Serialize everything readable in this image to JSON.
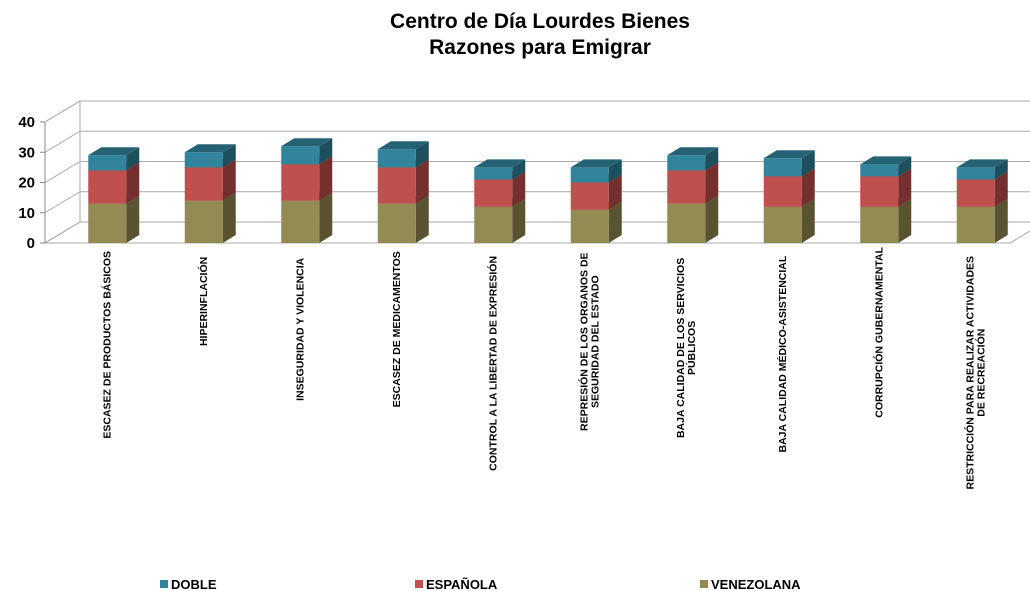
{
  "chart_data": {
    "type": "bar3d_stacked",
    "title": "Centro de Día Lourdes Bienes",
    "subtitle": "Razones para Emigrar",
    "categories": [
      "ESCASEZ DE PRODUCTOS BÁSICOS",
      "HIPERINFLACIÓN",
      "INSEGURIDAD Y VIOLENCIA",
      "ESCASEZ DE MEDICAMENTOS",
      "CONTROL A LA LIBERTAD DE EXPRESIÓN",
      "REPRESIÓN DE LOS ORGANOS DE\nSEGURIDAD DEL ESTADO",
      "BAJA CALIDAD DE LOS SERVICIOS\nPÚBLICOS",
      "BAJA CALIDAD MÉDICO-ASISTENCIAL",
      "CORRUPCIÓN GUBERNAMENTAL",
      "RESTRICCIÓN PARA REALIZAR ACTIVIDADES\nDE RECREACIÓN"
    ],
    "series": [
      {
        "name": "DOBLE",
        "color": "#31849b",
        "values": [
          5,
          5,
          6,
          6,
          4,
          5,
          5,
          6,
          4,
          4
        ]
      },
      {
        "name": "ESPAÑOLA",
        "color": "#c0504d",
        "values": [
          11,
          11,
          12,
          12,
          9,
          9,
          11,
          10,
          10,
          9
        ]
      },
      {
        "name": "VENEZOLANA",
        "color": "#948a54",
        "values": [
          13,
          14,
          14,
          13,
          12,
          11,
          13,
          12,
          12,
          12
        ]
      }
    ],
    "ylim": [
      0,
      40
    ],
    "yticks": [
      0,
      10,
      20,
      30,
      40
    ],
    "grid": true,
    "legend": "bottom"
  }
}
